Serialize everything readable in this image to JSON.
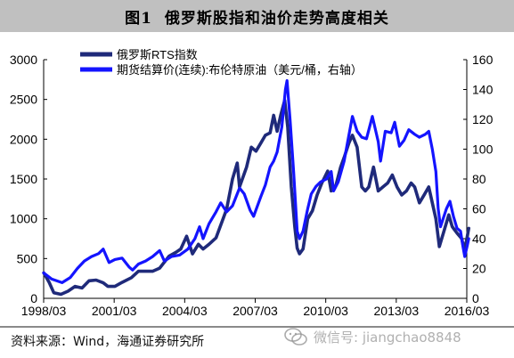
{
  "figure": {
    "number": "图1",
    "title": "俄罗斯股指和油价走势高度相关"
  },
  "source_note": "资料来源：Wind，海通证券研究所",
  "watermark": "微信号: jiangchao8848",
  "chart_data": {
    "type": "line",
    "x_ticks": [
      "1998/03",
      "2001/03",
      "2004/03",
      "2007/03",
      "2010/03",
      "2013/03",
      "2016/03"
    ],
    "x_range": [
      "1998/03",
      "2016/03"
    ],
    "y_left": {
      "ticks": [
        0,
        500,
        1000,
        1500,
        2000,
        2500,
        3000
      ],
      "ylim": [
        0,
        3000
      ]
    },
    "y_right": {
      "ticks": [
        0,
        20,
        40,
        60,
        80,
        100,
        120,
        140,
        160
      ],
      "ylim": [
        0,
        160
      ]
    },
    "grid": false,
    "legend_position": "top-left",
    "series": [
      {
        "name": "俄罗斯RTS指数",
        "axis": "left",
        "color": "#1f2a7a",
        "points": [
          [
            1998.17,
            320
          ],
          [
            1998.4,
            200
          ],
          [
            1998.6,
            70
          ],
          [
            1998.9,
            50
          ],
          [
            1999.2,
            90
          ],
          [
            1999.5,
            150
          ],
          [
            1999.8,
            130
          ],
          [
            2000.1,
            220
          ],
          [
            2000.4,
            230
          ],
          [
            2000.7,
            195
          ],
          [
            2000.9,
            150
          ],
          [
            2001.2,
            150
          ],
          [
            2001.5,
            200
          ],
          [
            2001.9,
            260
          ],
          [
            2002.2,
            340
          ],
          [
            2002.5,
            340
          ],
          [
            2002.8,
            340
          ],
          [
            2003.1,
            380
          ],
          [
            2003.5,
            530
          ],
          [
            2003.8,
            580
          ],
          [
            2004.0,
            620
          ],
          [
            2004.25,
            780
          ],
          [
            2004.5,
            560
          ],
          [
            2004.75,
            680
          ],
          [
            2004.95,
            620
          ],
          [
            2005.2,
            680
          ],
          [
            2005.5,
            760
          ],
          [
            2005.8,
            1000
          ],
          [
            2005.95,
            1120
          ],
          [
            2006.2,
            1500
          ],
          [
            2006.4,
            1700
          ],
          [
            2006.5,
            1400
          ],
          [
            2006.8,
            1650
          ],
          [
            2007.0,
            1900
          ],
          [
            2007.2,
            1850
          ],
          [
            2007.4,
            1950
          ],
          [
            2007.6,
            2050
          ],
          [
            2007.8,
            2080
          ],
          [
            2007.95,
            2300
          ],
          [
            2008.1,
            2100
          ],
          [
            2008.25,
            2300
          ],
          [
            2008.42,
            2490
          ],
          [
            2008.55,
            2150
          ],
          [
            2008.7,
            1400
          ],
          [
            2008.85,
            900
          ],
          [
            2008.95,
            630
          ],
          [
            2009.05,
            560
          ],
          [
            2009.2,
            620
          ],
          [
            2009.4,
            1000
          ],
          [
            2009.6,
            1100
          ],
          [
            2009.8,
            1300
          ],
          [
            2010.0,
            1450
          ],
          [
            2010.25,
            1600
          ],
          [
            2010.4,
            1350
          ],
          [
            2010.6,
            1420
          ],
          [
            2010.8,
            1650
          ],
          [
            2010.95,
            1770
          ],
          [
            2011.15,
            1950
          ],
          [
            2011.3,
            2050
          ],
          [
            2011.5,
            1900
          ],
          [
            2011.7,
            1400
          ],
          [
            2011.85,
            1350
          ],
          [
            2012.0,
            1400
          ],
          [
            2012.2,
            1650
          ],
          [
            2012.4,
            1350
          ],
          [
            2012.6,
            1400
          ],
          [
            2012.8,
            1450
          ],
          [
            2013.0,
            1550
          ],
          [
            2013.2,
            1400
          ],
          [
            2013.4,
            1300
          ],
          [
            2013.6,
            1350
          ],
          [
            2013.8,
            1450
          ],
          [
            2013.95,
            1400
          ],
          [
            2014.15,
            1200
          ],
          [
            2014.35,
            1300
          ],
          [
            2014.55,
            1400
          ],
          [
            2014.7,
            1200
          ],
          [
            2014.85,
            1000
          ],
          [
            2015.0,
            650
          ],
          [
            2015.2,
            850
          ],
          [
            2015.4,
            1050
          ],
          [
            2015.55,
            900
          ],
          [
            2015.75,
            820
          ],
          [
            2015.95,
            750
          ],
          [
            2016.05,
            620
          ],
          [
            2016.15,
            720
          ],
          [
            2016.25,
            880
          ]
        ]
      },
      {
        "name": "期货结算价(连续):布伦特原油（美元/桶，右轴）",
        "axis": "right",
        "color": "#1414ff",
        "points": [
          [
            1998.17,
            17
          ],
          [
            1998.5,
            13
          ],
          [
            1998.95,
            10.5
          ],
          [
            1999.3,
            14
          ],
          [
            1999.6,
            20
          ],
          [
            1999.9,
            25
          ],
          [
            2000.2,
            28
          ],
          [
            2000.5,
            30
          ],
          [
            2000.7,
            33
          ],
          [
            2000.95,
            24
          ],
          [
            2001.2,
            26
          ],
          [
            2001.5,
            27
          ],
          [
            2001.8,
            21
          ],
          [
            2001.95,
            19
          ],
          [
            2002.2,
            23
          ],
          [
            2002.5,
            25
          ],
          [
            2002.8,
            28
          ],
          [
            2003.1,
            32
          ],
          [
            2003.3,
            25
          ],
          [
            2003.6,
            28
          ],
          [
            2003.95,
            29
          ],
          [
            2004.3,
            33
          ],
          [
            2004.6,
            40
          ],
          [
            2004.8,
            48
          ],
          [
            2004.95,
            40
          ],
          [
            2005.2,
            50
          ],
          [
            2005.5,
            58
          ],
          [
            2005.7,
            64
          ],
          [
            2005.95,
            58
          ],
          [
            2006.2,
            62
          ],
          [
            2006.5,
            74
          ],
          [
            2006.7,
            70
          ],
          [
            2006.95,
            59
          ],
          [
            2007.1,
            55
          ],
          [
            2007.4,
            68
          ],
          [
            2007.6,
            76
          ],
          [
            2007.8,
            88
          ],
          [
            2007.95,
            92
          ],
          [
            2008.1,
            98
          ],
          [
            2008.3,
            115
          ],
          [
            2008.45,
            140
          ],
          [
            2008.52,
            146
          ],
          [
            2008.65,
            120
          ],
          [
            2008.8,
            85
          ],
          [
            2008.95,
            45
          ],
          [
            2009.05,
            40
          ],
          [
            2009.2,
            45
          ],
          [
            2009.4,
            60
          ],
          [
            2009.55,
            70
          ],
          [
            2009.75,
            75
          ],
          [
            2009.95,
            78
          ],
          [
            2010.2,
            80
          ],
          [
            2010.4,
            85
          ],
          [
            2010.5,
            72
          ],
          [
            2010.7,
            78
          ],
          [
            2010.95,
            92
          ],
          [
            2011.1,
            105
          ],
          [
            2011.3,
            122
          ],
          [
            2011.5,
            112
          ],
          [
            2011.7,
            108
          ],
          [
            2011.9,
            107
          ],
          [
            2012.15,
            122
          ],
          [
            2012.4,
            105
          ],
          [
            2012.5,
            92
          ],
          [
            2012.7,
            112
          ],
          [
            2012.95,
            111
          ],
          [
            2013.1,
            118
          ],
          [
            2013.3,
            102
          ],
          [
            2013.5,
            106
          ],
          [
            2013.7,
            113
          ],
          [
            2013.95,
            110
          ],
          [
            2014.15,
            108
          ],
          [
            2014.4,
            110
          ],
          [
            2014.55,
            112
          ],
          [
            2014.7,
            100
          ],
          [
            2014.85,
            85
          ],
          [
            2014.95,
            60
          ],
          [
            2015.05,
            48
          ],
          [
            2015.3,
            60
          ],
          [
            2015.45,
            65
          ],
          [
            2015.6,
            55
          ],
          [
            2015.75,
            47
          ],
          [
            2015.9,
            45
          ],
          [
            2016.0,
            35
          ],
          [
            2016.08,
            28
          ],
          [
            2016.18,
            35
          ],
          [
            2016.25,
            40
          ]
        ]
      }
    ]
  }
}
